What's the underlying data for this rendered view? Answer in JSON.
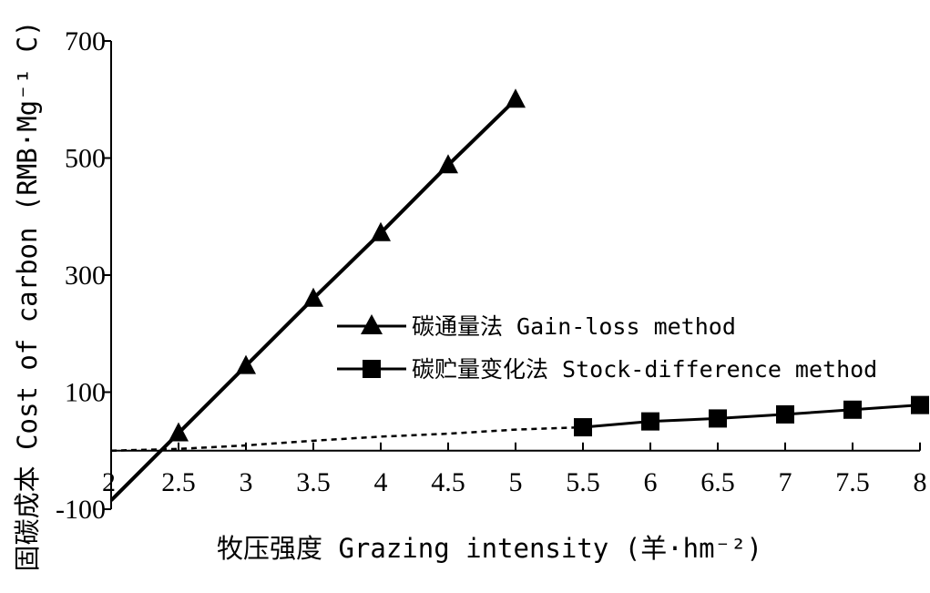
{
  "chart_data": {
    "type": "line",
    "xlabel": "牧压强度 Grazing intensity (羊·hm⁻²)",
    "ylabel": "固碳成本 Cost of carbon (RMB·Mg⁻¹ C)",
    "xlim": [
      2,
      8
    ],
    "ylim": [
      -100,
      700
    ],
    "x_ticks": [
      2,
      2.5,
      3,
      3.5,
      4,
      4.5,
      5,
      5.5,
      6,
      6.5,
      7,
      7.5,
      8
    ],
    "x_tick_labels": [
      "2",
      "2.5",
      "3",
      "3.5",
      "4",
      "4.5",
      "5",
      "5.5",
      "6",
      "6.5",
      "7",
      "7.5",
      "8"
    ],
    "y_ticks": [
      -100,
      100,
      300,
      500,
      700
    ],
    "y_tick_labels": [
      "-100",
      "100",
      "300",
      "500",
      "700"
    ],
    "legend_position": "center-right",
    "series": [
      {
        "name": "碳通量法 Gain-loss method",
        "marker": "triangle",
        "line_style": "solid",
        "color": "#000000",
        "x": [
          2.5,
          3,
          3.5,
          4,
          4.5,
          5
        ],
        "values": [
          30,
          145,
          260,
          372,
          488,
          600
        ],
        "extension_line": {
          "x": [
            2,
            2.5
          ],
          "values": [
            -85,
            30
          ]
        }
      },
      {
        "name": "碳贮量变化法 Stock-difference method",
        "marker": "square",
        "line_style": "solid",
        "color": "#000000",
        "x": [
          5.5,
          6,
          6.5,
          7,
          7.5,
          8
        ],
        "values": [
          40,
          50,
          55,
          62,
          70,
          78
        ],
        "dashed_extension": {
          "x": [
            2,
            2.5,
            3,
            3.5,
            4,
            4.5,
            5,
            5.5
          ],
          "values": [
            0,
            3,
            9,
            17,
            24,
            29,
            36,
            40
          ]
        }
      }
    ]
  }
}
